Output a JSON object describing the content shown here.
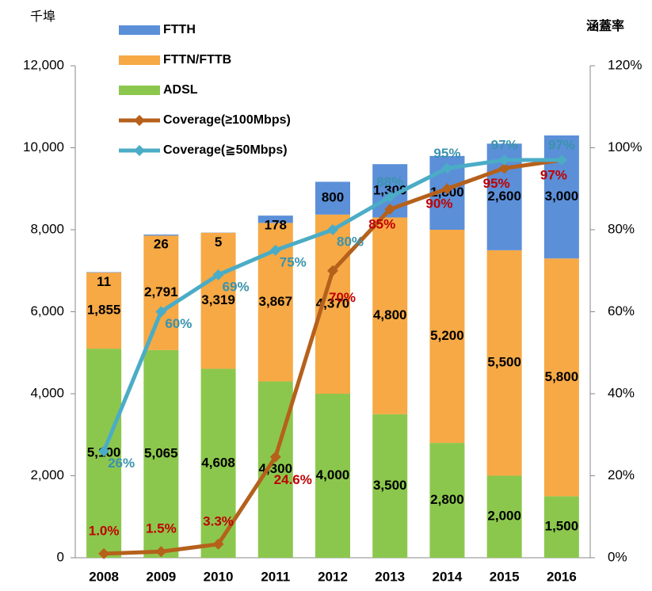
{
  "chart_data": {
    "type": "bar",
    "stacked": true,
    "y_label": "千埠",
    "y2_label": "涵蓋率",
    "categories": [
      "2008",
      "2009",
      "2010",
      "2011",
      "2012",
      "2013",
      "2014",
      "2015",
      "2016"
    ],
    "ylim": [
      0,
      12000
    ],
    "yticks": [
      0,
      {
        "value": 2000,
        "label": "2,000"
      },
      {
        "value": 4000,
        "label": "4,000"
      },
      {
        "value": 6000,
        "label": "6,000"
      },
      {
        "value": 8000,
        "label": "8,000"
      },
      {
        "value": 10000,
        "label": "10,000"
      },
      {
        "value": 12000,
        "label": "12,000"
      }
    ],
    "y2lim": [
      0,
      120
    ],
    "y2ticks": [
      {
        "value": 0,
        "label": "0%"
      },
      {
        "value": 20,
        "label": "20%"
      },
      {
        "value": 40,
        "label": "40%"
      },
      {
        "value": 60,
        "label": "60%"
      },
      {
        "value": 80,
        "label": "80%"
      },
      {
        "value": 100,
        "label": "100%"
      },
      {
        "value": 120,
        "label": "120%"
      }
    ],
    "legend": "top-left",
    "series": [
      {
        "name": "FTTH",
        "type": "bar",
        "color": "#5b8fd8",
        "values": [
          11,
          26,
          5,
          178,
          800,
          1300,
          1800,
          2600,
          3000
        ],
        "value_labels": [
          "11",
          "26",
          "5",
          "178",
          "800",
          "1,300",
          "1,800",
          "2,600",
          "3,000"
        ]
      },
      {
        "name": "FTTN/FTTB",
        "type": "bar",
        "color": "#f6a945",
        "values": [
          1855,
          2791,
          3319,
          3867,
          4370,
          4800,
          5200,
          5500,
          5800
        ],
        "value_labels": [
          "1,855",
          "2,791",
          "3,319",
          "3,867",
          "4,370",
          "4,800",
          "5,200",
          "5,500",
          "5,800"
        ]
      },
      {
        "name": "ADSL",
        "type": "bar",
        "color": "#8cc74d",
        "values": [
          5100,
          5065,
          4608,
          4300,
          4000,
          3500,
          2800,
          2000,
          1500
        ],
        "value_labels": [
          "5,100",
          "5,065",
          "4,608",
          "4,300",
          "4,000",
          "3,500",
          "2,800",
          "2,000",
          "1,500"
        ]
      },
      {
        "name": "Coverage(≥100Mbps)",
        "type": "line",
        "axis": "y2",
        "color": "#b5611c",
        "label_color": "#c00000",
        "values": [
          1.0,
          1.5,
          3.3,
          24.6,
          70,
          85,
          90,
          95,
          97
        ],
        "value_labels": [
          "1.0%",
          "1.5%",
          "3.3%",
          "24.6%",
          "70%",
          "85%",
          "90%",
          "95%",
          "97%"
        ]
      },
      {
        "name": "Coverage(≧50Mbps)",
        "type": "line",
        "axis": "y2",
        "color": "#4bacc6",
        "label_color": "#3a93ad",
        "values": [
          26,
          60,
          69,
          75,
          80,
          88,
          95,
          97,
          97
        ],
        "value_labels": [
          "26%",
          "60%",
          "69%",
          "75%",
          "80%",
          "88%",
          "95%",
          "97%",
          "97%"
        ]
      }
    ]
  }
}
